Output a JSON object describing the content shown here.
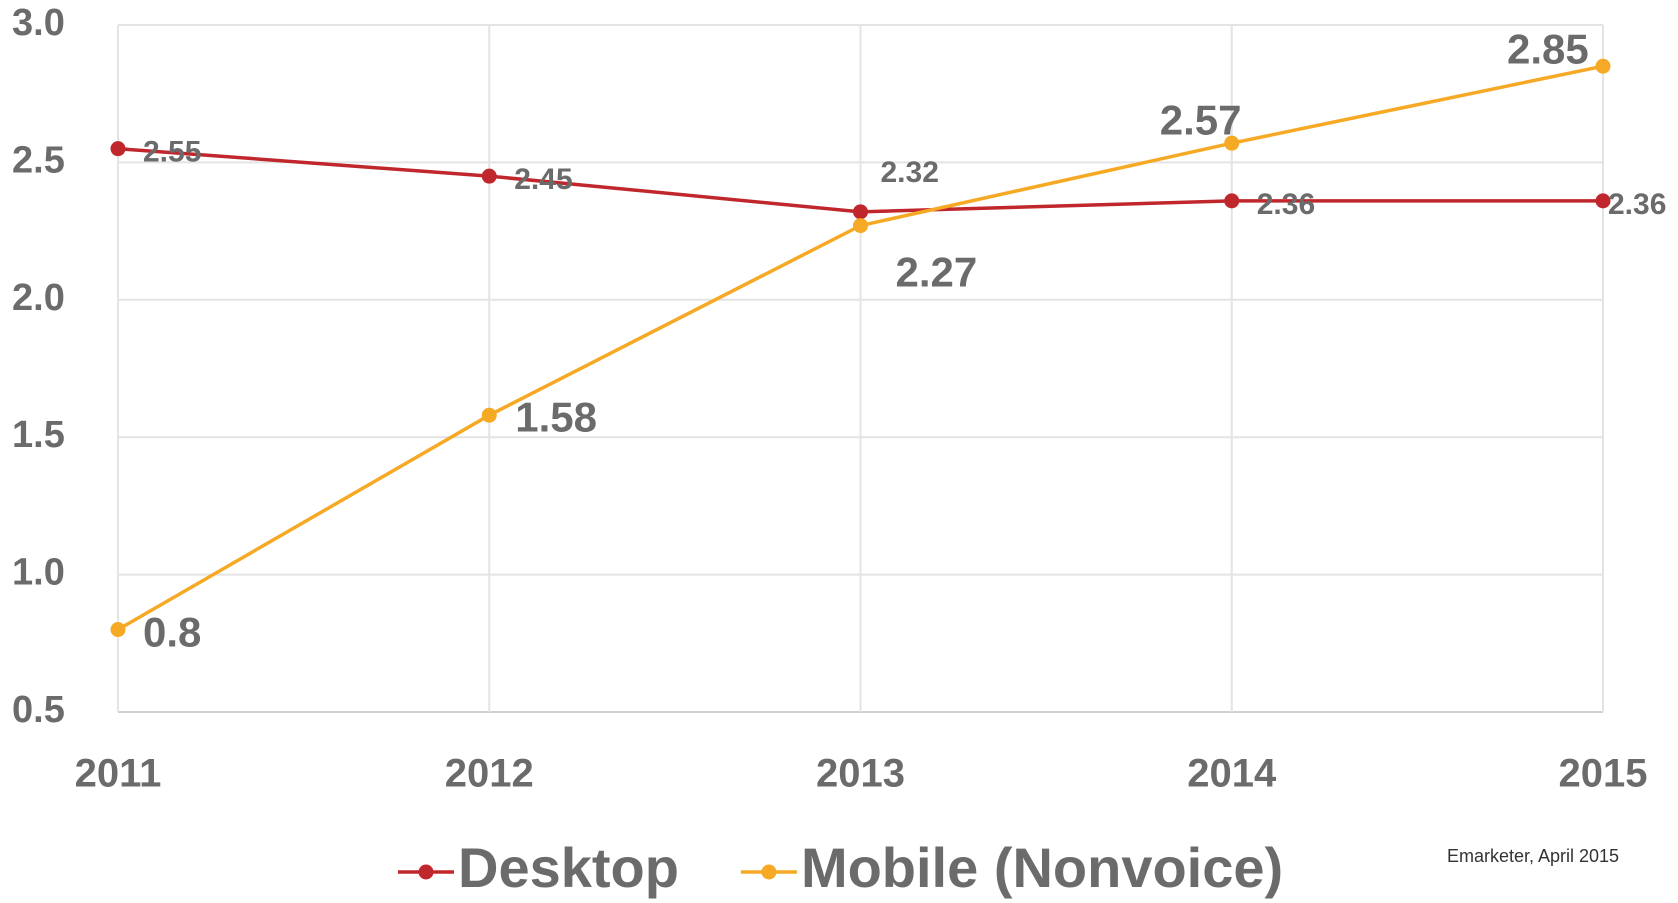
{
  "chart_data": {
    "type": "line",
    "categories": [
      "2011",
      "2012",
      "2013",
      "2014",
      "2015"
    ],
    "series": [
      {
        "name": "Desktop",
        "color": "#c0272d",
        "values": [
          2.55,
          2.45,
          2.32,
          2.36,
          2.36
        ]
      },
      {
        "name": "Mobile (Nonvoice)",
        "color": "#f6a924",
        "values": [
          0.8,
          1.58,
          2.27,
          2.57,
          2.85
        ]
      }
    ],
    "ylim": [
      0.5,
      3.0
    ],
    "yticks": [
      0.5,
      {
        "value": 1,
        "label": "1.0"
      },
      1.5,
      {
        "value": 2,
        "label": "2.0"
      },
      2.5,
      {
        "value": 3,
        "label": "3.0"
      }
    ],
    "grid": true,
    "legend": "bottom",
    "annotation": "Emarketer, April 2015"
  }
}
